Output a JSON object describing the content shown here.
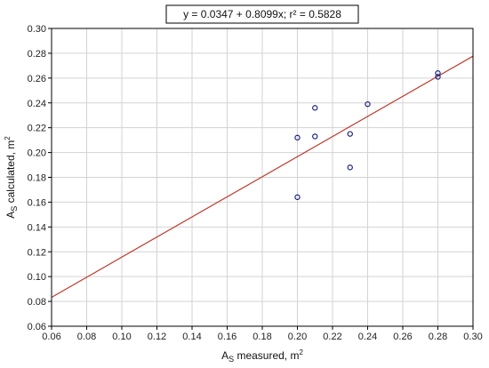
{
  "chart_data": {
    "type": "scatter",
    "title": "y = 0.0347 + 0.8099x;  r² = 0.5828",
    "xlabel": {
      "main": "A",
      "sub": "S",
      "rest": " measured, m",
      "sup": "2"
    },
    "ylabel": {
      "main": "A",
      "sub": "S",
      "rest": " calculated, m",
      "sup": "2"
    },
    "xlim": [
      0.06,
      0.3
    ],
    "ylim": [
      0.06,
      0.3
    ],
    "xticks": [
      "0.06",
      "0.08",
      "0.10",
      "0.12",
      "0.14",
      "0.16",
      "0.18",
      "0.20",
      "0.22",
      "0.24",
      "0.26",
      "0.28",
      "0.30"
    ],
    "yticks": [
      "0.06",
      "0.08",
      "0.10",
      "0.12",
      "0.14",
      "0.16",
      "0.18",
      "0.20",
      "0.22",
      "0.24",
      "0.26",
      "0.28",
      "0.30"
    ],
    "grid": true,
    "points": [
      {
        "x": 0.2,
        "y": 0.164
      },
      {
        "x": 0.2,
        "y": 0.212
      },
      {
        "x": 0.21,
        "y": 0.213
      },
      {
        "x": 0.21,
        "y": 0.236
      },
      {
        "x": 0.23,
        "y": 0.215
      },
      {
        "x": 0.23,
        "y": 0.188
      },
      {
        "x": 0.24,
        "y": 0.239
      },
      {
        "x": 0.28,
        "y": 0.261
      },
      {
        "x": 0.28,
        "y": 0.264
      }
    ],
    "fit": {
      "intercept": 0.0347,
      "slope": 0.8099
    },
    "colors": {
      "points": "#1a237e",
      "fit": "#c0392b",
      "grid": "#d3d3d3",
      "frame": "#000000"
    }
  }
}
